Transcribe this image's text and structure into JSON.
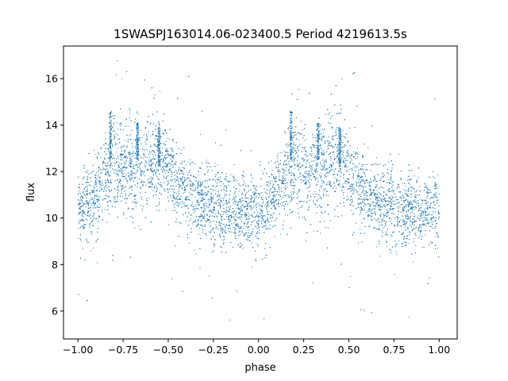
{
  "chart_data": {
    "type": "scatter",
    "title": "1SWASPJ163014.06-023400.5 Period 4219613.5s",
    "xlabel": "phase",
    "ylabel": "flux",
    "xlim": [
      -1.08,
      1.1
    ],
    "ylim": [
      4.8,
      17.4
    ],
    "xticks": [
      -1.0,
      -0.75,
      -0.5,
      -0.25,
      0.0,
      0.25,
      0.5,
      0.75,
      1.0
    ],
    "xtick_labels": [
      "−1.00",
      "−0.75",
      "−0.50",
      "−0.25",
      "0.00",
      "0.25",
      "0.50",
      "0.75",
      "1.00"
    ],
    "yticks": [
      6,
      8,
      10,
      12,
      14,
      16
    ],
    "ytick_labels": [
      "6",
      "8",
      "10",
      "12",
      "14",
      "16"
    ],
    "grid": false,
    "legend": "none",
    "series": [
      {
        "color": "#1f77b4",
        "marker_size": 0.6,
        "x_range": [
          -1.0,
          1.0
        ],
        "envelope": {
          "phase": [
            0.0,
            0.05,
            0.1,
            0.15,
            0.2,
            0.25,
            0.3,
            0.35,
            0.4,
            0.45,
            0.5,
            0.55,
            0.6,
            0.65,
            0.7,
            0.75,
            0.8,
            0.85,
            0.9,
            0.95,
            1.0
          ],
          "center": [
            10.3,
            10.5,
            11.0,
            11.8,
            12.3,
            12.2,
            12.0,
            12.2,
            12.4,
            12.6,
            12.0,
            11.3,
            11.0,
            10.8,
            10.6,
            10.4,
            10.3,
            10.2,
            10.3,
            10.3,
            10.3
          ],
          "spread": [
            1.0,
            1.0,
            1.1,
            1.2,
            1.3,
            1.3,
            1.3,
            1.4,
            1.4,
            1.3,
            1.2,
            1.1,
            1.1,
            1.1,
            1.1,
            1.1,
            1.0,
            1.0,
            1.0,
            1.0,
            1.0
          ]
        },
        "highlights": [
          {
            "x": -0.82,
            "y": [
              12.5,
              14.6
            ]
          },
          {
            "x": -0.67,
            "y": [
              12.5,
              14.1
            ]
          },
          {
            "x": -0.55,
            "y": [
              12.2,
              13.9
            ]
          },
          {
            "x": 0.18,
            "y": [
              12.5,
              14.6
            ]
          },
          {
            "x": 0.33,
            "y": [
              12.5,
              14.1
            ]
          },
          {
            "x": 0.45,
            "y": [
              12.2,
              13.9
            ]
          }
        ]
      }
    ]
  }
}
